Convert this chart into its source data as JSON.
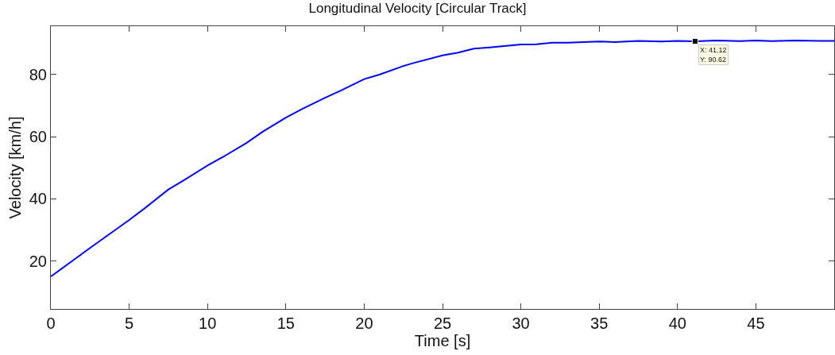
{
  "chart_data": {
    "type": "line",
    "title": "Longitudinal Velocity [Circular Track]",
    "xlabel": "Time [s]",
    "ylabel": "Velocity [km/h]",
    "x": [
      0,
      2.5,
      5,
      6,
      7.5,
      8.5,
      10,
      11,
      12.5,
      13.5,
      15,
      16,
      17.5,
      18.5,
      20,
      21,
      22.5,
      23.1,
      25,
      26,
      27,
      28,
      30,
      31,
      32,
      33,
      35,
      36,
      37.5,
      39,
      40,
      41.12,
      42.5,
      44,
      45,
      46,
      47.5,
      49,
      50
    ],
    "series": [
      {
        "color": "#0000ff",
        "values": [
          15,
          24.2,
          33.2,
          37.0,
          43.0,
          46.0,
          50.7,
          53.5,
          58.0,
          61.5,
          66.1,
          68.8,
          72.5,
          74.8,
          78.5,
          80.0,
          82.7,
          83.6,
          86.1,
          87.0,
          88.3,
          88.7,
          89.6,
          89.7,
          90.2,
          90.2,
          90.6,
          90.4,
          90.8,
          90.6,
          90.8,
          90.62,
          90.9,
          90.7,
          90.9,
          90.7,
          90.9,
          90.8,
          90.8
        ]
      }
    ],
    "xlim": [
      0,
      50
    ],
    "ylim": [
      4.6,
      95.5
    ],
    "xticks": [
      0,
      5,
      10,
      15,
      20,
      25,
      30,
      35,
      40,
      45
    ],
    "yticks": [
      20,
      40,
      60,
      80
    ],
    "marker": "none",
    "line_style": "solid",
    "annotations": [
      {
        "text": "X: 41.12\nY: 90.62",
        "x": 41.12,
        "y": 90.62
      }
    ]
  }
}
